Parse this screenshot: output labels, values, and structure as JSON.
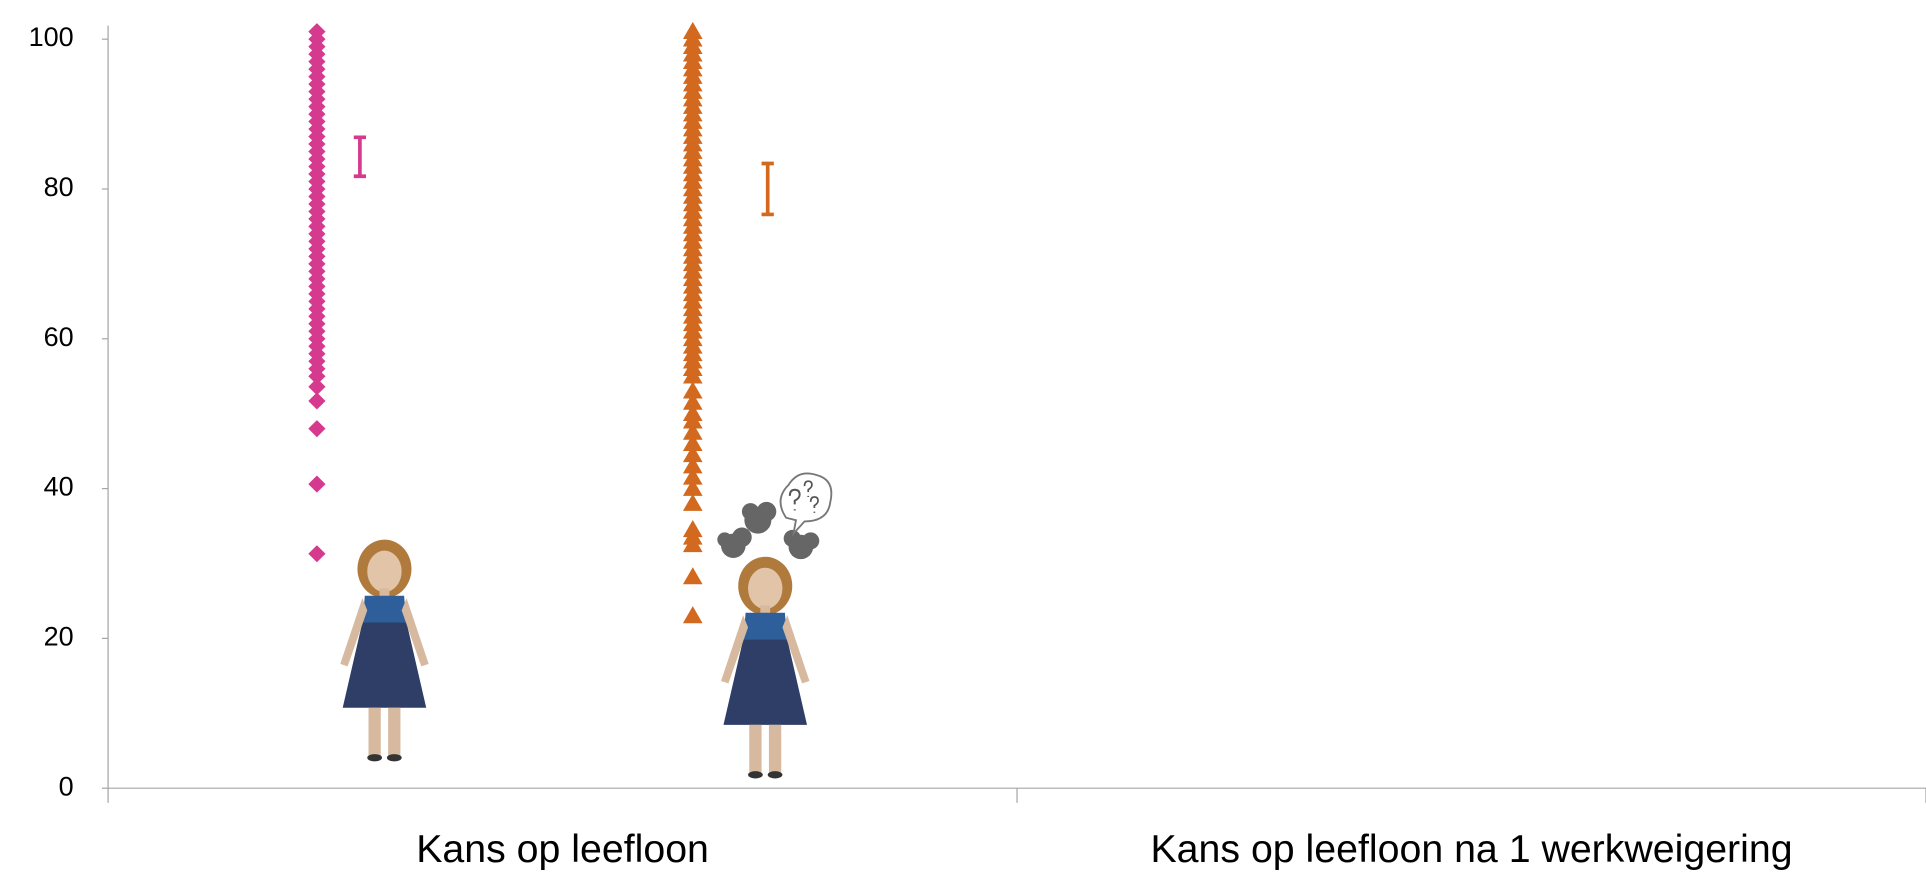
{
  "chart_data": {
    "type": "strip",
    "categories": [
      "Kans op leefloon",
      "Kans op leefloon na 1 werkweigering"
    ],
    "ylim": [
      0,
      101
    ],
    "yticks": [
      0,
      20,
      40,
      60,
      80,
      100
    ],
    "series": [
      {
        "color": "#d63a8f",
        "marker": "diamond",
        "category": 0,
        "values": [
          31.3,
          40.6,
          48,
          51.7,
          53.6,
          55,
          56,
          57,
          58,
          59,
          60,
          61,
          62,
          63,
          64,
          65,
          66,
          67,
          68,
          69,
          70,
          71,
          72,
          73,
          74,
          75,
          76,
          77,
          78,
          79,
          80,
          81,
          82,
          83,
          84,
          85,
          86,
          87,
          88,
          89,
          90,
          91,
          92,
          93,
          94,
          95,
          96,
          97,
          98,
          99,
          100,
          101
        ],
        "error_bar": {
          "value": 84.3,
          "error": 2.6
        }
      },
      {
        "color": "#d2691e",
        "marker": "triangle",
        "category": 0,
        "values": [
          23,
          28.2,
          32.5,
          33.5,
          34.5,
          38,
          40,
          41.5,
          43,
          44.5,
          46,
          47.5,
          49,
          50,
          51.5,
          53,
          55,
          56,
          57,
          58,
          59,
          60,
          61,
          62,
          63,
          64,
          65,
          66,
          67,
          68,
          69,
          70,
          71,
          72,
          73,
          74,
          75,
          76,
          77,
          78,
          79,
          80,
          81,
          82,
          83,
          84,
          85,
          86,
          87,
          88,
          89,
          90,
          91,
          92,
          93,
          94,
          95,
          96,
          97,
          98,
          99,
          100,
          101
        ],
        "error_bar": {
          "value": 80,
          "error": 3.4
        }
      }
    ]
  }
}
